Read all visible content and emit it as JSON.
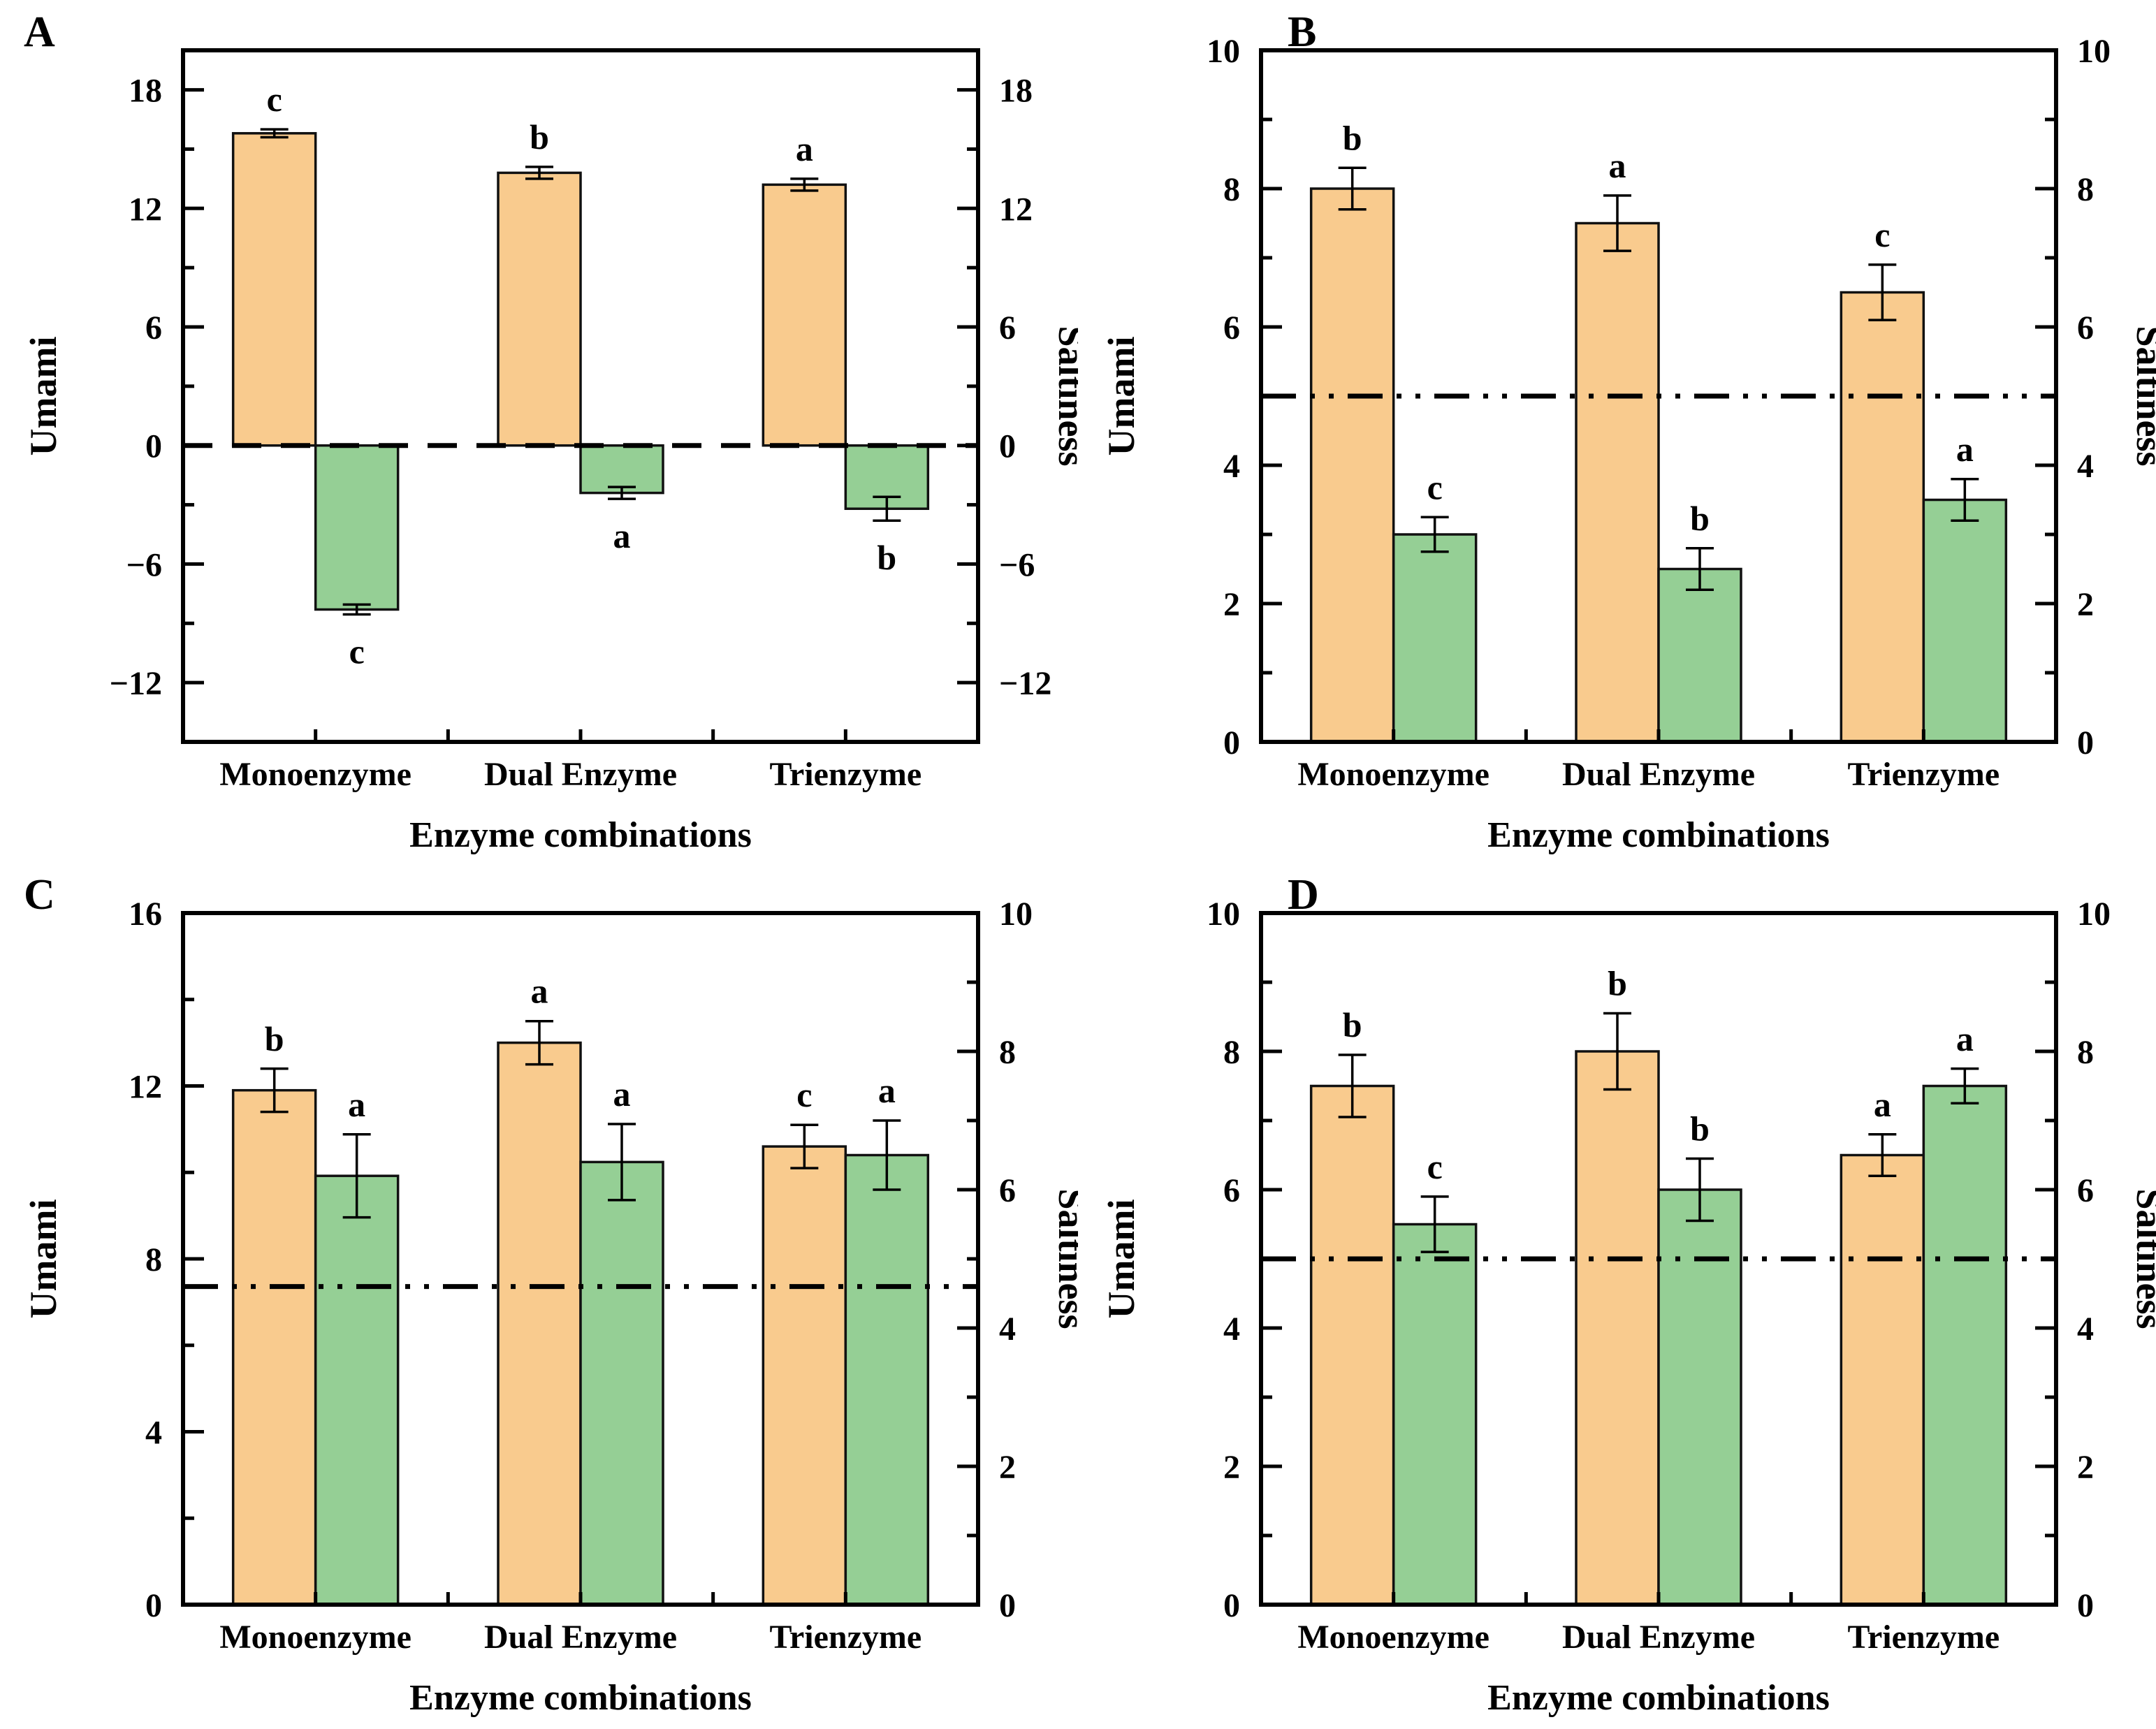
{
  "figure_title": "",
  "style": {
    "umami_bar_color": "#F9CB8E",
    "saltiness_bar_color": "#95CF95",
    "bar_outline_color": "#111111",
    "axis_color": "#000000",
    "text_color": "#000000",
    "background": "#FFFFFF"
  },
  "chart_data": [
    {
      "type": "bar",
      "panel_label": "A",
      "title": "",
      "xlabel": "Enzyme combinations",
      "ylabel_left": "Umami",
      "ylabel_right": "Saltiness",
      "categories": [
        "Monoenzyme",
        "Dual Enzyme",
        "Trienzyme"
      ],
      "left_axis": {
        "min": -15,
        "max": 20,
        "majors": [
          18,
          12,
          6,
          0,
          -6,
          -12
        ],
        "minors": [
          15,
          9,
          3,
          -3,
          -9
        ]
      },
      "right_axis": {
        "min": -15,
        "max": 20,
        "majors": [
          18,
          12,
          6,
          0,
          -6,
          -12
        ],
        "minors": [
          15,
          9,
          3,
          -3,
          -9
        ]
      },
      "series": [
        {
          "name": "Umami",
          "axis": "left",
          "color_key": "umami_bar_color",
          "values": [
            15.8,
            13.8,
            13.2
          ],
          "errors": [
            0.2,
            0.3,
            0.3
          ],
          "letters": [
            "c",
            "b",
            "a"
          ],
          "letter_side": [
            "above",
            "above",
            "above"
          ]
        },
        {
          "name": "Saltiness",
          "axis": "right",
          "color_key": "saltiness_bar_color",
          "values": [
            -8.3,
            -2.4,
            -3.2
          ],
          "errors": [
            0.25,
            0.3,
            0.6
          ],
          "letters": [
            "c",
            "a",
            "b"
          ],
          "letter_side": [
            "below",
            "below",
            "below"
          ]
        }
      ],
      "reference_line": {
        "value": 0,
        "axis": "left",
        "style": "dashed"
      }
    },
    {
      "type": "bar",
      "panel_label": "B",
      "title": "",
      "xlabel": "Enzyme combinations",
      "ylabel_left": "Umami",
      "ylabel_right": "Saltiness",
      "categories": [
        "Monoenzyme",
        "Dual Enzyme",
        "Trienzyme"
      ],
      "left_axis": {
        "min": 0,
        "max": 10,
        "majors": [
          10,
          8,
          6,
          4,
          2,
          0
        ],
        "minors": [
          9,
          7,
          5,
          3,
          1
        ]
      },
      "right_axis": {
        "min": 0,
        "max": 10,
        "majors": [
          10,
          8,
          6,
          4,
          2,
          0
        ],
        "minors": [
          9,
          7,
          5,
          3,
          1
        ]
      },
      "series": [
        {
          "name": "Umami",
          "axis": "left",
          "color_key": "umami_bar_color",
          "values": [
            8.0,
            7.5,
            6.5
          ],
          "errors": [
            0.3,
            0.4,
            0.4
          ],
          "letters": [
            "b",
            "a",
            "c"
          ],
          "letter_side": [
            "above",
            "above",
            "above"
          ]
        },
        {
          "name": "Saltiness",
          "axis": "right",
          "color_key": "saltiness_bar_color",
          "values": [
            3.0,
            2.5,
            3.5
          ],
          "errors": [
            0.25,
            0.3,
            0.3
          ],
          "letters": [
            "c",
            "b",
            "a"
          ],
          "letter_side": [
            "above",
            "above",
            "above"
          ]
        }
      ],
      "reference_line": {
        "value": 5,
        "axis": "left",
        "style": "dashdot"
      }
    },
    {
      "type": "bar",
      "panel_label": "C",
      "title": "",
      "xlabel": "Enzyme combinations",
      "ylabel_left": "Umami",
      "ylabel_right": "Saltiness",
      "categories": [
        "Monoenzyme",
        "Dual Enzyme",
        "Trienzyme"
      ],
      "left_axis": {
        "min": 0,
        "max": 16,
        "majors": [
          16,
          12,
          8,
          4,
          0
        ],
        "minors": [
          14,
          10,
          6,
          2
        ]
      },
      "right_axis": {
        "min": 0,
        "max": 10,
        "majors": [
          10,
          8,
          6,
          4,
          2,
          0
        ],
        "minors": [
          9,
          7,
          5,
          3,
          1
        ]
      },
      "series": [
        {
          "name": "Umami",
          "axis": "left",
          "color_key": "umami_bar_color",
          "values": [
            11.9,
            13.0,
            10.6
          ],
          "errors": [
            0.5,
            0.5,
            0.5
          ],
          "letters": [
            "b",
            "a",
            "c"
          ],
          "letter_side": [
            "above",
            "above",
            "above"
          ]
        },
        {
          "name": "Saltiness",
          "axis": "right",
          "color_key": "saltiness_bar_color",
          "values": [
            6.2,
            6.4,
            6.5
          ],
          "errors": [
            0.6,
            0.55,
            0.5
          ],
          "letters": [
            "a",
            "a",
            "a"
          ],
          "letter_side": [
            "above",
            "above",
            "above"
          ]
        }
      ],
      "reference_line": {
        "value": 4.6,
        "axis": "right",
        "style": "dashdot"
      }
    },
    {
      "type": "bar",
      "panel_label": "D",
      "title": "",
      "xlabel": "Enzyme combinations",
      "ylabel_left": "Umami",
      "ylabel_right": "Saltiness",
      "categories": [
        "Monoenzyme",
        "Dual Enzyme",
        "Trienzyme"
      ],
      "left_axis": {
        "min": 0,
        "max": 10,
        "majors": [
          10,
          8,
          6,
          4,
          2,
          0
        ],
        "minors": [
          9,
          7,
          5,
          3,
          1
        ]
      },
      "right_axis": {
        "min": 0,
        "max": 10,
        "majors": [
          10,
          8,
          6,
          4,
          2,
          0
        ],
        "minors": [
          9,
          7,
          5,
          3,
          1
        ]
      },
      "series": [
        {
          "name": "Umami",
          "axis": "left",
          "color_key": "umami_bar_color",
          "values": [
            7.5,
            8.0,
            6.5
          ],
          "errors": [
            0.45,
            0.55,
            0.3
          ],
          "letters": [
            "b",
            "b",
            "a"
          ],
          "letter_side": [
            "above",
            "above",
            "above"
          ]
        },
        {
          "name": "Saltiness",
          "axis": "right",
          "color_key": "saltiness_bar_color",
          "values": [
            5.5,
            6.0,
            7.5
          ],
          "errors": [
            0.4,
            0.45,
            0.25
          ],
          "letters": [
            "c",
            "b",
            "a"
          ],
          "letter_side": [
            "above",
            "above",
            "above"
          ]
        }
      ],
      "reference_line": {
        "value": 5,
        "axis": "left",
        "style": "dashdot"
      }
    }
  ]
}
